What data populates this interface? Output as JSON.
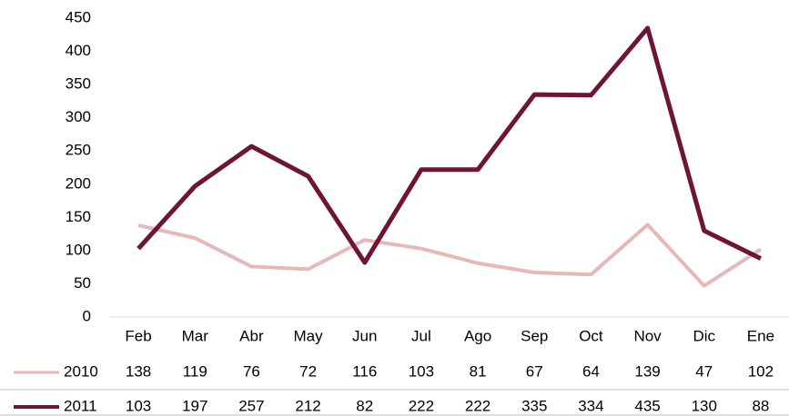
{
  "chart_data": {
    "type": "line",
    "categories": [
      "Feb",
      "Mar",
      "Abr",
      "May",
      "Jun",
      "Jul",
      "Ago",
      "Sep",
      "Oct",
      "Nov",
      "Dic",
      "Ene"
    ],
    "series": [
      {
        "name": "2010",
        "color": "#e6b8b7",
        "values": [
          138,
          119,
          76,
          72,
          116,
          103,
          81,
          67,
          64,
          139,
          47,
          102
        ]
      },
      {
        "name": "2011",
        "color": "#6e1535",
        "values": [
          103,
          197,
          257,
          212,
          82,
          222,
          222,
          335,
          334,
          435,
          130,
          88
        ]
      }
    ],
    "ylim": [
      0,
      450
    ],
    "yticks": [
      0,
      50,
      100,
      150,
      200,
      250,
      300,
      350,
      400,
      450
    ]
  }
}
